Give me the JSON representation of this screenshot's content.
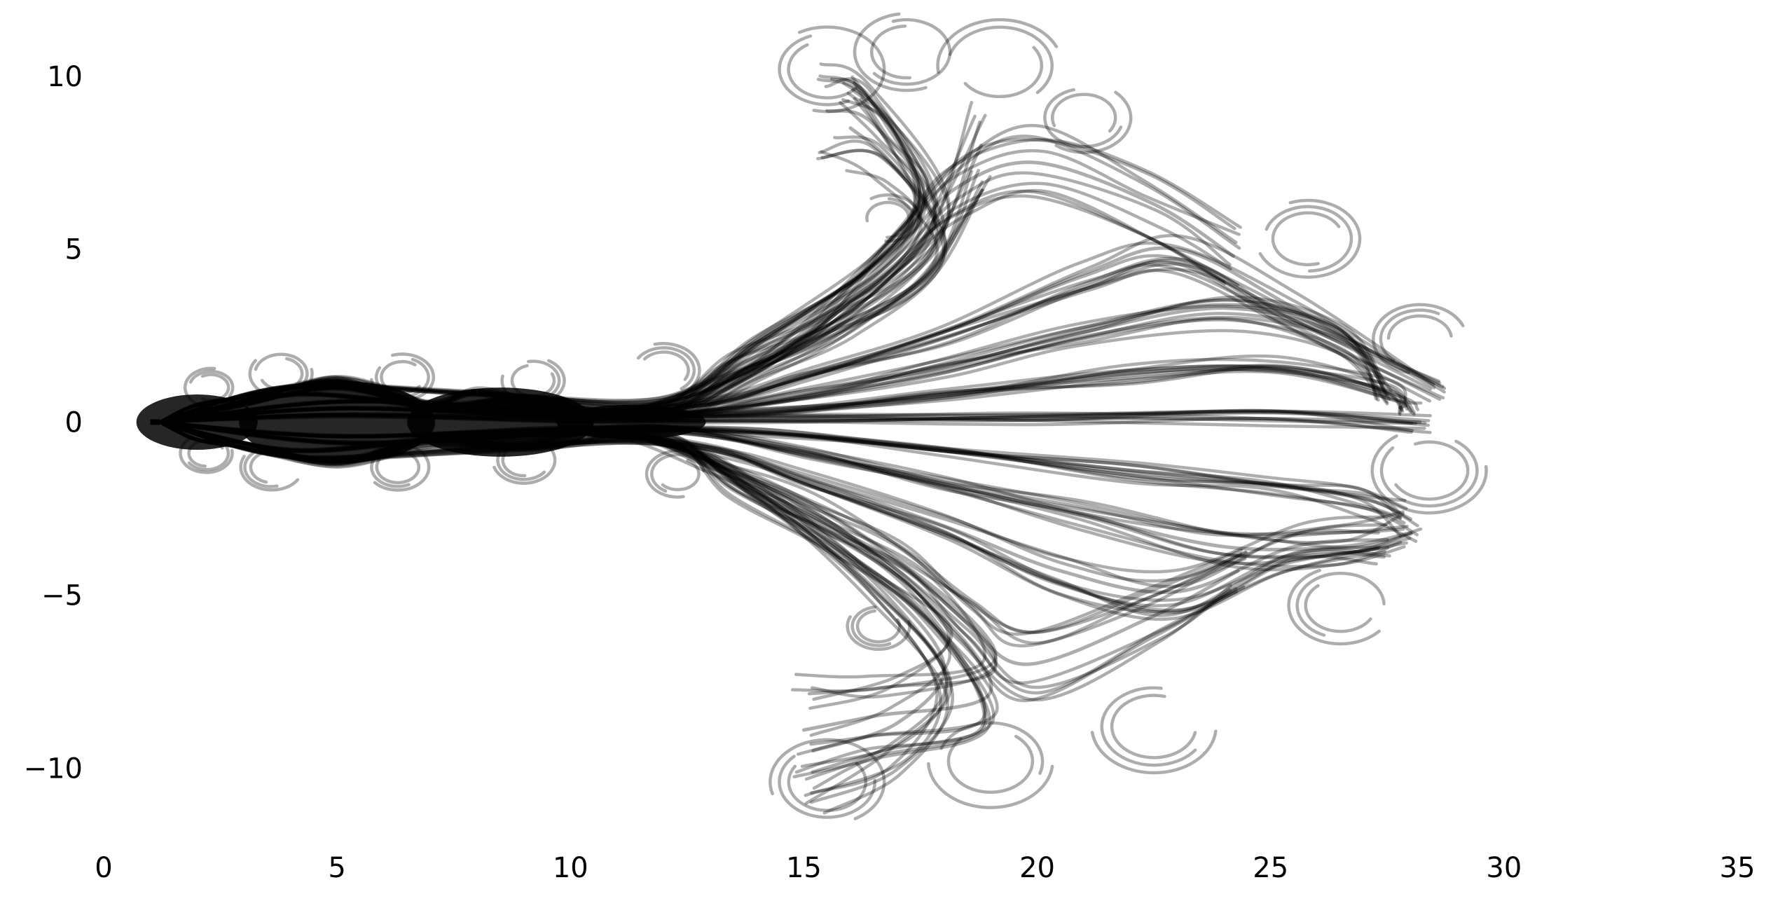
{
  "chart_data": {
    "type": "line",
    "title": "",
    "xlabel": "",
    "ylabel": "",
    "xlim": [
      0,
      35
    ],
    "ylim": [
      -12,
      12
    ],
    "x_ticks": [
      {
        "value": 0,
        "label": "0"
      },
      {
        "value": 5,
        "label": "5"
      },
      {
        "value": 10,
        "label": "10"
      },
      {
        "value": 15,
        "label": "15"
      },
      {
        "value": 20,
        "label": "20"
      },
      {
        "value": 25,
        "label": "25"
      },
      {
        "value": 30,
        "label": "30"
      },
      {
        "value": 35,
        "label": "35"
      }
    ],
    "y_ticks": [
      {
        "value": 10,
        "label": "10"
      },
      {
        "value": 5,
        "label": "5"
      },
      {
        "value": 0,
        "label": "0"
      },
      {
        "value": -5,
        "label": "−5"
      },
      {
        "value": -10,
        "label": "−10"
      }
    ],
    "grid": false,
    "axis_spines": false,
    "line_color": "#000000",
    "line_opacity": 0.32,
    "origin_marker": {
      "x": [
        1.0,
        1.2
      ],
      "y": 0
    },
    "series": [
      {
        "points": [
          [
            1.2,
            0
          ],
          [
            2,
            0.5
          ],
          [
            3,
            0.7
          ],
          [
            4,
            1.0
          ],
          [
            5,
            1.2
          ],
          [
            6,
            0.9
          ],
          [
            7,
            0.5
          ],
          [
            8,
            0.9
          ],
          [
            9,
            0.6
          ],
          [
            10,
            0.3
          ],
          [
            12,
            0.4
          ],
          [
            13.5,
            1.6
          ],
          [
            15.5,
            2.8
          ],
          [
            17.5,
            4.6
          ],
          [
            18.8,
            8.0
          ]
        ]
      },
      {
        "points": [
          [
            1.2,
            0
          ],
          [
            3,
            0.6
          ],
          [
            5,
            1.2
          ],
          [
            7,
            0.5
          ],
          [
            9,
            0.7
          ],
          [
            11,
            0.3
          ],
          [
            13,
            1.0
          ],
          [
            15,
            2.5
          ],
          [
            17,
            5.0
          ],
          [
            18.3,
            6.8
          ],
          [
            20,
            7.5
          ],
          [
            22.5,
            6.3
          ],
          [
            24.2,
            4.8
          ]
        ]
      },
      {
        "points": [
          [
            1.2,
            0
          ],
          [
            3,
            0.5
          ],
          [
            5,
            1.0
          ],
          [
            7,
            0.4
          ],
          [
            9,
            0.5
          ],
          [
            12,
            0.2
          ],
          [
            14,
            1.5
          ],
          [
            16,
            3.0
          ],
          [
            18,
            5.5
          ],
          [
            16.5,
            8.6
          ],
          [
            15.5,
            9.0
          ]
        ]
      },
      {
        "points": [
          [
            1.2,
            0
          ],
          [
            4,
            0.8
          ],
          [
            7,
            0.5
          ],
          [
            10,
            0.3
          ],
          [
            13,
            0.6
          ],
          [
            15,
            1.4
          ],
          [
            18,
            2.6
          ],
          [
            21,
            4.3
          ],
          [
            23,
            5.0
          ],
          [
            25.5,
            3.3
          ],
          [
            28.5,
            1.0
          ]
        ]
      },
      {
        "points": [
          [
            1.2,
            0
          ],
          [
            5,
            0.6
          ],
          [
            9,
            0.4
          ],
          [
            12,
            0.2
          ],
          [
            15,
            0.8
          ],
          [
            18,
            1.6
          ],
          [
            21,
            2.6
          ],
          [
            24,
            3.3
          ],
          [
            26.5,
            2.5
          ],
          [
            27.5,
            0.8
          ]
        ]
      },
      {
        "points": [
          [
            1.2,
            0
          ],
          [
            5,
            0.4
          ],
          [
            10,
            0.2
          ],
          [
            14,
            0.3
          ],
          [
            18,
            0.8
          ],
          [
            22,
            1.4
          ],
          [
            25,
            1.6
          ],
          [
            27.5,
            0.9
          ],
          [
            28,
            0.3
          ]
        ]
      },
      {
        "points": [
          [
            1.2,
            0
          ],
          [
            5,
            0.2
          ],
          [
            10,
            0.1
          ],
          [
            15,
            0.1
          ],
          [
            20,
            0.1
          ],
          [
            25,
            0.1
          ],
          [
            28.2,
            0
          ]
        ]
      },
      {
        "points": [
          [
            1.2,
            0
          ],
          [
            5,
            -0.4
          ],
          [
            10,
            -0.2
          ],
          [
            14,
            -0.3
          ],
          [
            18,
            -0.8
          ],
          [
            22,
            -1.4
          ],
          [
            25,
            -1.8
          ],
          [
            27,
            -2.2
          ],
          [
            28,
            -2.8
          ]
        ]
      },
      {
        "points": [
          [
            1.2,
            0
          ],
          [
            5,
            -0.6
          ],
          [
            9,
            -0.4
          ],
          [
            12,
            -0.2
          ],
          [
            15,
            -0.9
          ],
          [
            18,
            -1.8
          ],
          [
            21,
            -2.7
          ],
          [
            24,
            -3.6
          ],
          [
            26.5,
            -3.6
          ],
          [
            28,
            -3.2
          ]
        ]
      },
      {
        "points": [
          [
            1.2,
            0
          ],
          [
            4,
            -0.8
          ],
          [
            7,
            -0.5
          ],
          [
            10,
            -0.3
          ],
          [
            13,
            -0.8
          ],
          [
            15,
            -1.6
          ],
          [
            18,
            -3.0
          ],
          [
            20.5,
            -4.3
          ],
          [
            23,
            -4.9
          ],
          [
            25.5,
            -3.6
          ],
          [
            27.5,
            -3.4
          ]
        ]
      },
      {
        "points": [
          [
            1.2,
            0
          ],
          [
            3,
            -0.6
          ],
          [
            5,
            -1.1
          ],
          [
            7,
            -0.5
          ],
          [
            9,
            -0.6
          ],
          [
            11,
            -0.3
          ],
          [
            13,
            -1.2
          ],
          [
            15,
            -2.3
          ],
          [
            17,
            -4.0
          ],
          [
            18.5,
            -5.8
          ],
          [
            19.8,
            -7.0
          ],
          [
            22.5,
            -5.6
          ],
          [
            24.3,
            -4.3
          ]
        ]
      },
      {
        "points": [
          [
            1.2,
            0
          ],
          [
            2,
            -0.5
          ],
          [
            3,
            -0.7
          ],
          [
            5,
            -1.2
          ],
          [
            7,
            -0.6
          ],
          [
            9,
            -0.7
          ],
          [
            12,
            -0.4
          ],
          [
            13.5,
            -1.8
          ],
          [
            15.5,
            -3.2
          ],
          [
            17.5,
            -5.0
          ],
          [
            19,
            -7.8
          ],
          [
            16.5,
            -8.5
          ],
          [
            15,
            -8.9
          ]
        ]
      },
      {
        "points": [
          [
            1.2,
            0
          ],
          [
            4,
            -1.0
          ],
          [
            8,
            -0.8
          ],
          [
            12,
            -0.6
          ],
          [
            14,
            -2.0
          ],
          [
            16.5,
            -4.5
          ],
          [
            18,
            -7.0
          ],
          [
            17,
            -8.7
          ],
          [
            15.2,
            -9.5
          ]
        ]
      },
      {
        "points": [
          [
            1.2,
            0
          ],
          [
            4,
            1.0
          ],
          [
            8,
            0.8
          ],
          [
            12,
            0.6
          ],
          [
            14,
            2.2
          ],
          [
            16.5,
            4.2
          ],
          [
            17.5,
            6.0
          ],
          [
            16.8,
            7.6
          ],
          [
            16,
            8.5
          ]
        ]
      }
    ],
    "loops": [
      {
        "cx": 15.5,
        "cy": 10.2,
        "r": 1.1
      },
      {
        "cx": 17.2,
        "cy": 10.7,
        "r": 1.0
      },
      {
        "cx": 19.2,
        "cy": 10.3,
        "r": 1.2
      },
      {
        "cx": 21.0,
        "cy": 8.8,
        "r": 0.9
      },
      {
        "cx": 25.8,
        "cy": 5.3,
        "r": 1.0
      },
      {
        "cx": 28.2,
        "cy": 2.4,
        "r": 0.9
      },
      {
        "cx": 28.4,
        "cy": -1.4,
        "r": 1.1
      },
      {
        "cx": 26.5,
        "cy": -5.3,
        "r": 1.0
      },
      {
        "cx": 22.5,
        "cy": -8.8,
        "r": 1.2
      },
      {
        "cx": 19.0,
        "cy": -9.8,
        "r": 1.2
      },
      {
        "cx": 15.5,
        "cy": -10.4,
        "r": 1.1
      },
      {
        "cx": 16.8,
        "cy": 5.9,
        "r": 0.6
      },
      {
        "cx": 16.6,
        "cy": -5.9,
        "r": 0.6
      },
      {
        "cx": 12.0,
        "cy": 1.5,
        "r": 0.7
      },
      {
        "cx": 12.3,
        "cy": -1.5,
        "r": 0.6
      },
      {
        "cx": 9.2,
        "cy": 1.2,
        "r": 0.6
      },
      {
        "cx": 9.0,
        "cy": -1.1,
        "r": 0.6
      },
      {
        "cx": 6.4,
        "cy": 1.3,
        "r": 0.6
      },
      {
        "cx": 6.3,
        "cy": -1.3,
        "r": 0.6
      },
      {
        "cx": 3.8,
        "cy": 1.4,
        "r": 0.6
      },
      {
        "cx": 3.6,
        "cy": -1.3,
        "r": 0.6
      },
      {
        "cx": 2.3,
        "cy": 1.0,
        "r": 0.5
      },
      {
        "cx": 2.2,
        "cy": -0.9,
        "r": 0.5
      }
    ],
    "filled_lobes": [
      {
        "cx": 2.0,
        "cy": 0,
        "rx": 1.3,
        "ry": 0.8
      },
      {
        "cx": 5.0,
        "cy": 0,
        "rx": 2.1,
        "ry": 1.2
      },
      {
        "cx": 8.5,
        "cy": 0,
        "rx": 2.0,
        "ry": 1.0
      },
      {
        "cx": 11.3,
        "cy": 0,
        "rx": 1.6,
        "ry": 0.5
      }
    ]
  }
}
